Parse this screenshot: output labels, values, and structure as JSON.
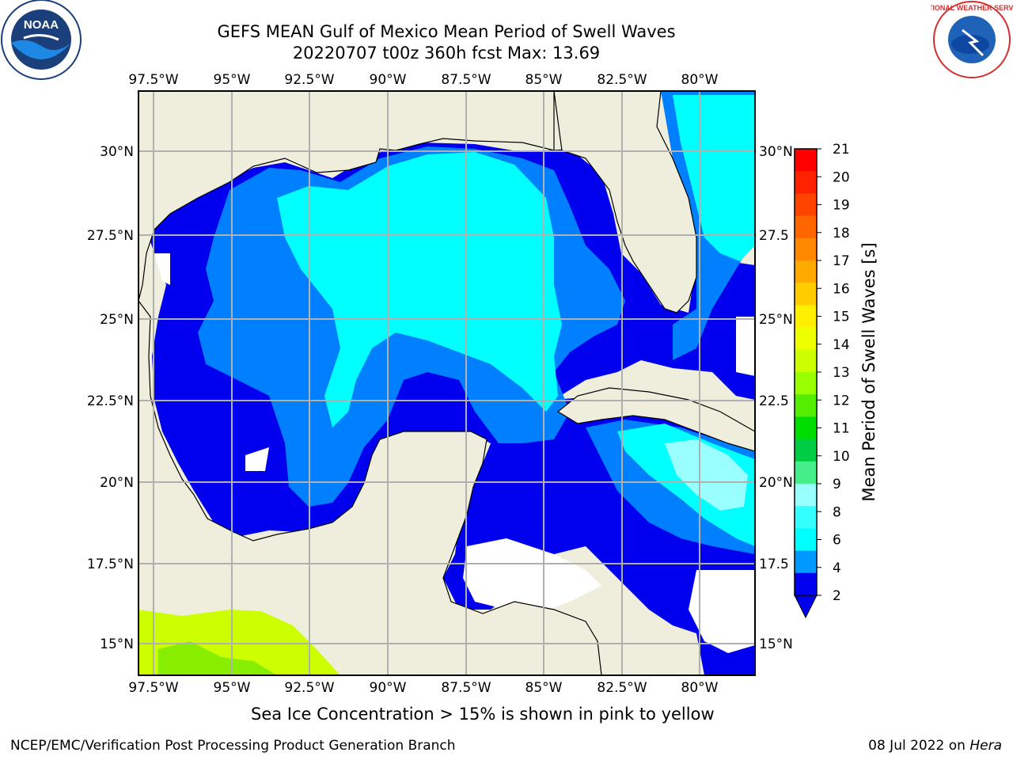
{
  "title_line1": "GEFS MEAN Gulf of Mexico Mean Period of Swell Waves",
  "title_line2": "20220707 t00z 360h fcst   Max: 13.69",
  "lon_ticks": [
    "97.5°W",
    "95°W",
    "92.5°W",
    "90°W",
    "87.5°W",
    "85°W",
    "82.5°W",
    "80°W"
  ],
  "lat_ticks_left": [
    "30°N",
    "27.5°N",
    "25°N",
    "22.5°N",
    "20°N",
    "17.5°N",
    "15°N"
  ],
  "lat_ticks_right": [
    "30°N",
    "27.5",
    "25°N",
    "22.5",
    "20°N",
    "17.5",
    "15°N"
  ],
  "colorbar": {
    "label": "Mean Period of Swell Waves [s]",
    "ticks": [
      "21",
      "20",
      "19",
      "18",
      "17",
      "16",
      "15",
      "14",
      "13",
      "12",
      "11",
      "10",
      "9",
      "8",
      "6",
      "4",
      "2"
    ],
    "colors": [
      "#ff0000",
      "#ff2200",
      "#ff4400",
      "#ff6600",
      "#ff8800",
      "#ffaa00",
      "#ffcc00",
      "#ffee00",
      "#eeff00",
      "#ccff00",
      "#99ff00",
      "#55ee00",
      "#00dd00",
      "#00cc44",
      "#44ee88",
      "#99ffff",
      "#33ffff",
      "#00ffff",
      "#0099ff",
      "#0000ee"
    ]
  },
  "footer_note": "Sea Ice Concentration > 15% is shown in pink to yellow",
  "credit": "NCEP/EMC/Verification Post Processing Product Generation Branch",
  "date_stamp": "08 Jul 2022 on",
  "host": "Hera",
  "colors": {
    "land": "#efeedc",
    "swell_2_4": "#0000ee",
    "swell_4_6": "#0080ff",
    "swell_6_8": "#00ffff",
    "swell_8_9": "#99ffff",
    "swell_12_13": "#ccff00",
    "swell_11_12": "#88ee00",
    "no_data": "#ffffff",
    "grid": "#b0b0b0"
  },
  "logos": {
    "left": "NOAA",
    "right": "NATIONAL WEATHER SERVICE"
  }
}
